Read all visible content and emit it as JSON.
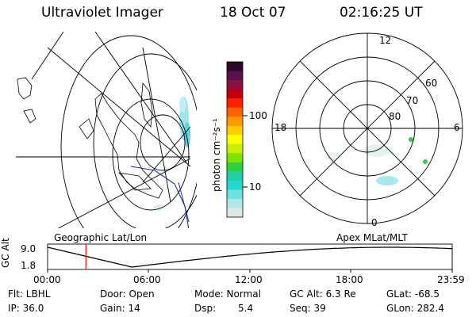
{
  "header": {
    "instrument": "Ultraviolet Imager",
    "date": "18 Oct 07",
    "time": "02:16:25 UT"
  },
  "colorbar": {
    "unit_label": "photon cm⁻²s⁻¹",
    "tick_100": "100",
    "tick_10": "10",
    "colors": [
      "#2a0a2a",
      "#5a1050",
      "#8a1040",
      "#c00010",
      "#ff2000",
      "#ff6000",
      "#ff9900",
      "#ffcc00",
      "#ffff00",
      "#c8f000",
      "#80e000",
      "#30d040",
      "#20d0a0",
      "#20d8d0",
      "#70e0e0",
      "#b0e8e8",
      "#dde8ea"
    ]
  },
  "geo_panel": {
    "label": "Geographic Lat/Lon"
  },
  "polar_panel": {
    "label": "Apex MLat/MLT",
    "mlt_12": "12",
    "mlt_18": "18",
    "mlt_6": "6",
    "mlt_0": "0",
    "lat_60": "60",
    "lat_70": "70",
    "lat_80": "80"
  },
  "altitude_plot": {
    "ylabel": "GC Alt",
    "ytick_top": "9.0",
    "ytick_bottom": "1.8",
    "xticks": [
      "00:00",
      "06:00",
      "12:00",
      "18:00",
      "23:59"
    ],
    "marker_time_hours": 2.27,
    "marker_color": "#ff0000"
  },
  "info": {
    "filter": "Flt: LBHL",
    "ip": "IP: 36.0",
    "door": "Door: Open",
    "gain": "Gain: 14",
    "mode": "Mode: Normal",
    "dsp_label": "Dsp:",
    "dsp_value": "5.4",
    "gc_alt": "GC Alt: 6.3 Re",
    "seq": "Seq: 39",
    "glat": "GLat: -68.5",
    "glon": "GLon: 282.4"
  }
}
